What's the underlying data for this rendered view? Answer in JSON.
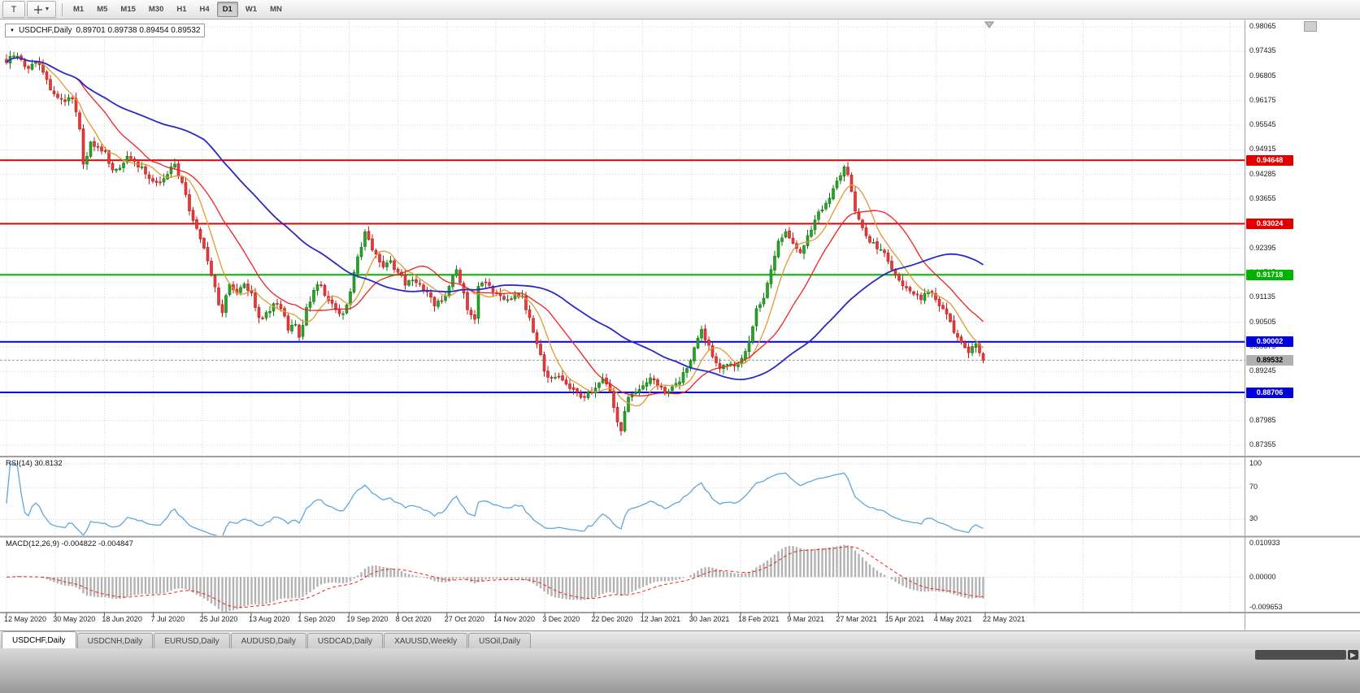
{
  "toolbar": {
    "left_button": "T",
    "timeframes": [
      "M1",
      "M5",
      "M15",
      "M30",
      "H1",
      "H4",
      "D1",
      "W1",
      "MN"
    ],
    "active_timeframe": "D1"
  },
  "chart_title": {
    "symbol": "USDCHF,Daily",
    "ohlc": "0.89701 0.89738 0.89454 0.89532"
  },
  "chart_data": {
    "type": "candlestick",
    "symbol": "USDCHF",
    "period": "Daily",
    "candle_count": 268,
    "last_candle": {
      "open": 0.89701,
      "high": 0.89738,
      "low": 0.89454,
      "close": 0.89532
    },
    "candle_colors": {
      "bull": "#28a428",
      "bear": "#e43b3b",
      "bull_border": "#117711",
      "bear_border": "#bb1c1c"
    },
    "close_anchors": [
      [
        0,
        0.9715
      ],
      [
        2,
        0.9732
      ],
      [
        4,
        0.9722
      ],
      [
        6,
        0.97
      ],
      [
        8,
        0.9716
      ],
      [
        10,
        0.969
      ],
      [
        12,
        0.9645
      ],
      [
        14,
        0.9625
      ],
      [
        16,
        0.9615
      ],
      [
        18,
        0.9622
      ],
      [
        20,
        0.9545
      ],
      [
        21,
        0.9455
      ],
      [
        22,
        0.9475
      ],
      [
        23,
        0.9512
      ],
      [
        25,
        0.95
      ],
      [
        27,
        0.9488
      ],
      [
        29,
        0.944
      ],
      [
        31,
        0.9445
      ],
      [
        33,
        0.9475
      ],
      [
        35,
        0.9462
      ],
      [
        37,
        0.9448
      ],
      [
        39,
        0.9418
      ],
      [
        41,
        0.9408
      ],
      [
        43,
        0.9418
      ],
      [
        45,
        0.9448
      ],
      [
        46,
        0.9455
      ],
      [
        48,
        0.9408
      ],
      [
        50,
        0.9335
      ],
      [
        52,
        0.929
      ],
      [
        54,
        0.924
      ],
      [
        56,
        0.917
      ],
      [
        58,
        0.9095
      ],
      [
        59,
        0.9075
      ],
      [
        61,
        0.9148
      ],
      [
        63,
        0.9125
      ],
      [
        65,
        0.9148
      ],
      [
        67,
        0.9125
      ],
      [
        69,
        0.9062
      ],
      [
        71,
        0.9075
      ],
      [
        73,
        0.9098
      ],
      [
        75,
        0.9085
      ],
      [
        77,
        0.903
      ],
      [
        79,
        0.9045
      ],
      [
        80,
        0.9012
      ],
      [
        82,
        0.9088
      ],
      [
        84,
        0.9132
      ],
      [
        86,
        0.9145
      ],
      [
        88,
        0.9105
      ],
      [
        90,
        0.9082
      ],
      [
        92,
        0.9072
      ],
      [
        94,
        0.9128
      ],
      [
        96,
        0.9218
      ],
      [
        98,
        0.9282
      ],
      [
        99,
        0.9262
      ],
      [
        101,
        0.9225
      ],
      [
        103,
        0.9192
      ],
      [
        105,
        0.9208
      ],
      [
        107,
        0.9178
      ],
      [
        109,
        0.9145
      ],
      [
        111,
        0.9158
      ],
      [
        113,
        0.9148
      ],
      [
        115,
        0.9128
      ],
      [
        117,
        0.9092
      ],
      [
        119,
        0.9105
      ],
      [
        121,
        0.9142
      ],
      [
        123,
        0.9185
      ],
      [
        125,
        0.9125
      ],
      [
        126,
        0.9082
      ],
      [
        128,
        0.9058
      ],
      [
        129,
        0.9142
      ],
      [
        131,
        0.9152
      ],
      [
        133,
        0.9128
      ],
      [
        135,
        0.9118
      ],
      [
        137,
        0.9108
      ],
      [
        139,
        0.9122
      ],
      [
        141,
        0.9118
      ],
      [
        143,
        0.9062
      ],
      [
        145,
        0.8995
      ],
      [
        147,
        0.8925
      ],
      [
        149,
        0.8908
      ],
      [
        151,
        0.8912
      ],
      [
        153,
        0.8892
      ],
      [
        155,
        0.8878
      ],
      [
        157,
        0.8858
      ],
      [
        159,
        0.8872
      ],
      [
        161,
        0.8882
      ],
      [
        163,
        0.8905
      ],
      [
        165,
        0.8872
      ],
      [
        166,
        0.8832
      ],
      [
        167,
        0.8795
      ],
      [
        168,
        0.8772
      ],
      [
        169,
        0.8822
      ],
      [
        170,
        0.8858
      ],
      [
        172,
        0.8872
      ],
      [
        174,
        0.8888
      ],
      [
        176,
        0.8908
      ],
      [
        178,
        0.8888
      ],
      [
        180,
        0.8868
      ],
      [
        182,
        0.8885
      ],
      [
        184,
        0.8898
      ],
      [
        186,
        0.8932
      ],
      [
        188,
        0.8985
      ],
      [
        190,
        0.9032
      ],
      [
        191,
        0.9005
      ],
      [
        193,
        0.8962
      ],
      [
        195,
        0.8932
      ],
      [
        197,
        0.8942
      ],
      [
        199,
        0.8938
      ],
      [
        201,
        0.8958
      ],
      [
        203,
        0.9002
      ],
      [
        205,
        0.9085
      ],
      [
        207,
        0.9112
      ],
      [
        209,
        0.9185
      ],
      [
        211,
        0.9258
      ],
      [
        213,
        0.9282
      ],
      [
        215,
        0.9252
      ],
      [
        217,
        0.9228
      ],
      [
        219,
        0.9272
      ],
      [
        221,
        0.9312
      ],
      [
        223,
        0.9338
      ],
      [
        225,
        0.9368
      ],
      [
        227,
        0.9412
      ],
      [
        229,
        0.9448
      ],
      [
        230,
        0.9428
      ],
      [
        232,
        0.9335
      ],
      [
        234,
        0.9292
      ],
      [
        236,
        0.9255
      ],
      [
        238,
        0.9238
      ],
      [
        240,
        0.9228
      ],
      [
        242,
        0.9185
      ],
      [
        244,
        0.9158
      ],
      [
        246,
        0.9138
      ],
      [
        248,
        0.9122
      ],
      [
        250,
        0.9108
      ],
      [
        252,
        0.9128
      ],
      [
        254,
        0.9108
      ],
      [
        256,
        0.9085
      ],
      [
        258,
        0.9052
      ],
      [
        260,
        0.9012
      ],
      [
        261,
        0.8998
      ],
      [
        262,
        0.8985
      ],
      [
        263,
        0.8972
      ],
      [
        264,
        0.8988
      ],
      [
        265,
        0.8995
      ],
      [
        266,
        0.8972
      ],
      [
        267,
        0.89532
      ]
    ],
    "price_axis": {
      "step": 0.0063,
      "tick_labels": [
        "0.98065",
        "0.97435",
        "0.96805",
        "0.96175",
        "0.95545",
        "0.94915",
        "0.94285",
        "0.93655",
        "0.93025",
        "0.92395",
        "0.91765",
        "0.91135",
        "0.90505",
        "0.89875",
        "0.89245",
        "0.88615",
        "0.87985",
        "0.87355"
      ]
    },
    "x_axis_labels": [
      "12 May 2020",
      "30 May 2020",
      "18 Jun 2020",
      "7 Jul 2020",
      "25 Jul 2020",
      "13 Aug 2020",
      "1 Sep 2020",
      "19 Sep 2020",
      "8 Oct 2020",
      "27 Oct 2020",
      "14 Nov 2020",
      "3 Dec 2020",
      "22 Dec 2020",
      "12 Jan 2021",
      "30 Jan 2021",
      "18 Feb 2021",
      "9 Mar 2021",
      "27 Mar 2021",
      "15 Apr 2021",
      "4 May 2021",
      "22 May 2021"
    ],
    "horizontal_lines": [
      {
        "price": 0.94648,
        "label": "0.94648",
        "color": "#e00000",
        "type": "resistance"
      },
      {
        "price": 0.93024,
        "label": "0.93024",
        "color": "#e00000",
        "type": "resistance"
      },
      {
        "price": 0.91718,
        "label": "0.91718",
        "color": "#00b400",
        "type": "level"
      },
      {
        "price": 0.90002,
        "label": "0.90002",
        "color": "#0000dd",
        "type": "support"
      },
      {
        "price": 0.88706,
        "label": "0.88706",
        "color": "#0000dd",
        "type": "support"
      }
    ],
    "bid_price": {
      "value": 0.89532,
      "label": "0.89532",
      "badge_color": "#b0b0b0"
    },
    "moving_averages": [
      {
        "period": 8,
        "color": "#e09a2f"
      },
      {
        "period": 20,
        "color": "#ee2222"
      },
      {
        "period": 55,
        "color": "#2929c8"
      }
    ],
    "rsi": {
      "label": "RSI(14) 30.8132",
      "period": 14,
      "current": 30.8132,
      "levels": [
        100,
        70,
        30
      ],
      "level_labels": [
        "100",
        "70",
        "30"
      ],
      "color": "#62a6d9"
    },
    "macd": {
      "label": "MACD(12,26,9) -0.004822 -0.004847",
      "fast": 12,
      "slow": 26,
      "signal_period": 9,
      "macd_value": -0.004822,
      "signal_value": -0.004847,
      "scale_values": [
        0.010933,
        0,
        -0.009653
      ],
      "scale_labels": [
        "0.010933",
        "0.00000",
        "-0.009653"
      ],
      "scale_max": 0.010933,
      "scale_min": -0.009653,
      "histogram_color": "#b2b2b2",
      "signal_color": "#ee2222"
    }
  },
  "tabs": {
    "items": [
      {
        "label": "USDCHF,Daily",
        "active": true
      },
      {
        "label": "USDCNH,Daily",
        "active": false
      },
      {
        "label": "EURUSD,Daily",
        "active": false
      },
      {
        "label": "AUDUSD,Daily",
        "active": false
      },
      {
        "label": "USDCAD,Daily",
        "active": false
      },
      {
        "label": "XAUUSD,Weekly",
        "active": false
      },
      {
        "label": "USOil,Daily",
        "active": false
      }
    ]
  }
}
